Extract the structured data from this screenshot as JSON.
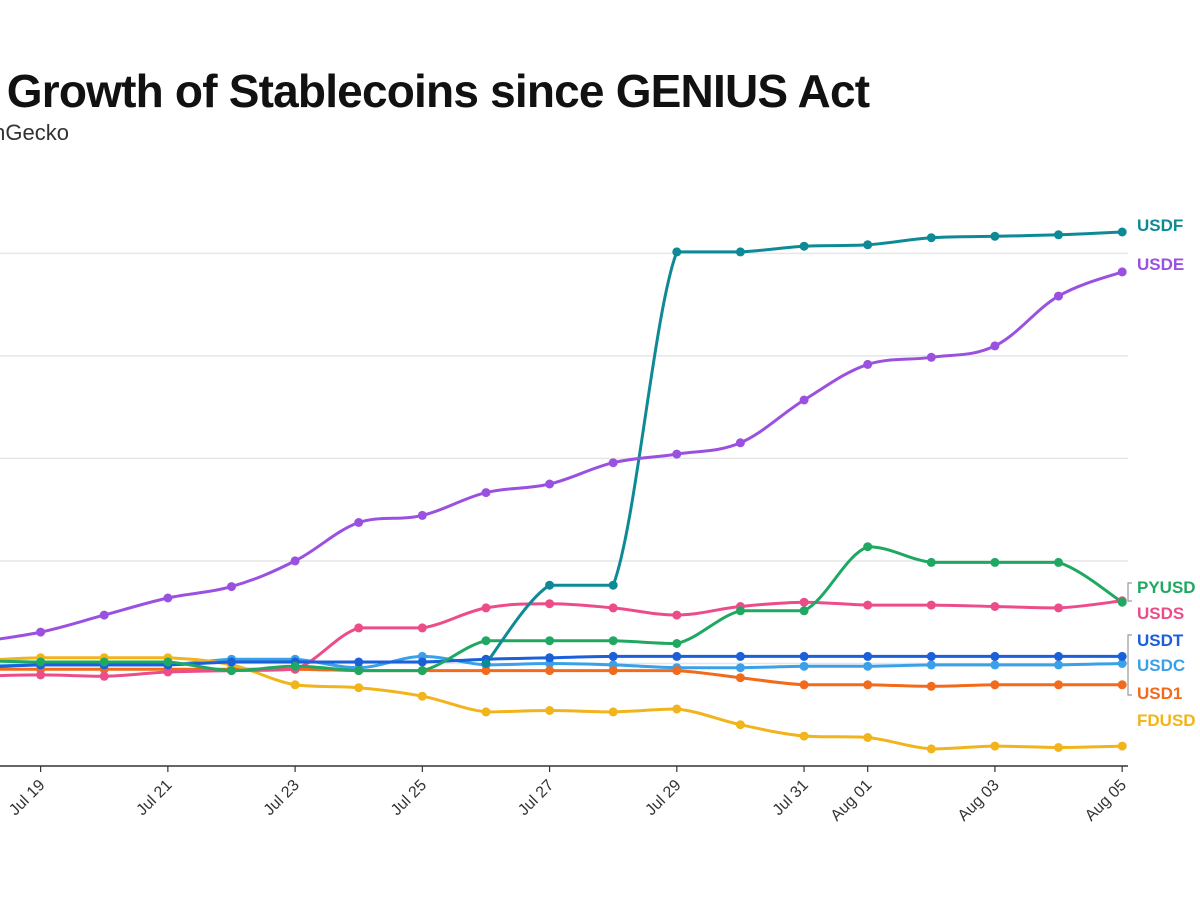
{
  "header": {
    "title": "e Growth of Stablecoins since GENIUS Act",
    "subtitle": "oinGecko"
  },
  "chart_data": {
    "type": "line",
    "title": "e Growth of Stablecoins since GENIUS Act",
    "subtitle": "oinGecko",
    "xlabel": "",
    "ylabel": "",
    "x": [
      "Jul 18",
      "Jul 19",
      "Jul 20",
      "Jul 21",
      "Jul 22",
      "Jul 23",
      "Jul 24",
      "Jul 25",
      "Jul 26",
      "Jul 27",
      "Jul 28",
      "Jul 29",
      "Jul 30",
      "Jul 31",
      "Aug 01",
      "Aug 02",
      "Aug 03",
      "Aug 04",
      "Aug 05"
    ],
    "x_tick_labels": [
      "Jul 19",
      "Jul 21",
      "Jul 23",
      "Jul 25",
      "Jul 27",
      "Jul 29",
      "Jul 31",
      "Aug 01",
      "Aug 03",
      "Aug 05"
    ],
    "y_gridlines": [
      0.72,
      1.44,
      2.16,
      2.88,
      3.6
    ],
    "ylim": [
      0.0,
      3.8
    ],
    "grid": true,
    "legend": "direct labels at right end of lines",
    "series": [
      {
        "name": "USDF",
        "color": "#0e8a97",
        "values": [
          null,
          null,
          null,
          null,
          null,
          null,
          null,
          null,
          0.72,
          1.27,
          1.27,
          3.61,
          3.61,
          3.65,
          3.66,
          3.71,
          3.72,
          3.73,
          3.75
        ]
      },
      {
        "name": "USDE",
        "color": "#9b51e0",
        "values": [
          0.87,
          0.94,
          1.06,
          1.18,
          1.26,
          1.44,
          1.71,
          1.76,
          1.92,
          1.98,
          2.13,
          2.19,
          2.27,
          2.57,
          2.82,
          2.87,
          2.95,
          3.3,
          3.47
        ]
      },
      {
        "name": "PYUSD",
        "color": "#1fa862",
        "values": [
          0.74,
          0.73,
          0.73,
          0.73,
          0.67,
          0.7,
          0.67,
          0.67,
          0.88,
          0.88,
          0.88,
          0.86,
          1.09,
          1.09,
          1.54,
          1.43,
          1.43,
          1.43,
          1.15
        ]
      },
      {
        "name": "USDS",
        "color": "#ec4d8a",
        "values": [
          0.63,
          0.64,
          0.63,
          0.66,
          0.67,
          0.68,
          0.97,
          0.97,
          1.11,
          1.14,
          1.11,
          1.06,
          1.12,
          1.15,
          1.13,
          1.13,
          1.12,
          1.11,
          1.16
        ]
      },
      {
        "name": "USDT",
        "color": "#1b5fd9",
        "values": [
          0.69,
          0.71,
          0.71,
          0.71,
          0.73,
          0.73,
          0.73,
          0.73,
          0.75,
          0.76,
          0.77,
          0.77,
          0.77,
          0.77,
          0.77,
          0.77,
          0.77,
          0.77,
          0.77
        ]
      },
      {
        "name": "USDC",
        "color": "#3aa0e8",
        "values": [
          0.7,
          0.71,
          0.71,
          0.71,
          0.75,
          0.75,
          0.69,
          0.77,
          0.71,
          0.72,
          0.71,
          0.69,
          0.69,
          0.7,
          0.7,
          0.71,
          0.71,
          0.71,
          0.72
        ]
      },
      {
        "name": "USD1",
        "color": "#f26b1d",
        "values": [
          0.68,
          0.68,
          0.68,
          0.68,
          0.68,
          0.68,
          0.67,
          0.67,
          0.67,
          0.67,
          0.67,
          0.67,
          0.62,
          0.57,
          0.57,
          0.56,
          0.57,
          0.57,
          0.57
        ]
      },
      {
        "name": "FDUSD",
        "color": "#f2b41b",
        "values": [
          0.74,
          0.76,
          0.76,
          0.76,
          0.71,
          0.57,
          0.55,
          0.49,
          0.38,
          0.39,
          0.38,
          0.4,
          0.29,
          0.21,
          0.2,
          0.12,
          0.14,
          0.13,
          0.14
        ]
      }
    ]
  },
  "labels": {
    "usdf": "USDF",
    "usde": "USDE",
    "pyusd": "PYUSD",
    "usds": "USDS",
    "usdt": "USDT",
    "usdc": "USDC",
    "usd1": "USD1",
    "fdusd": "FDUSD"
  }
}
